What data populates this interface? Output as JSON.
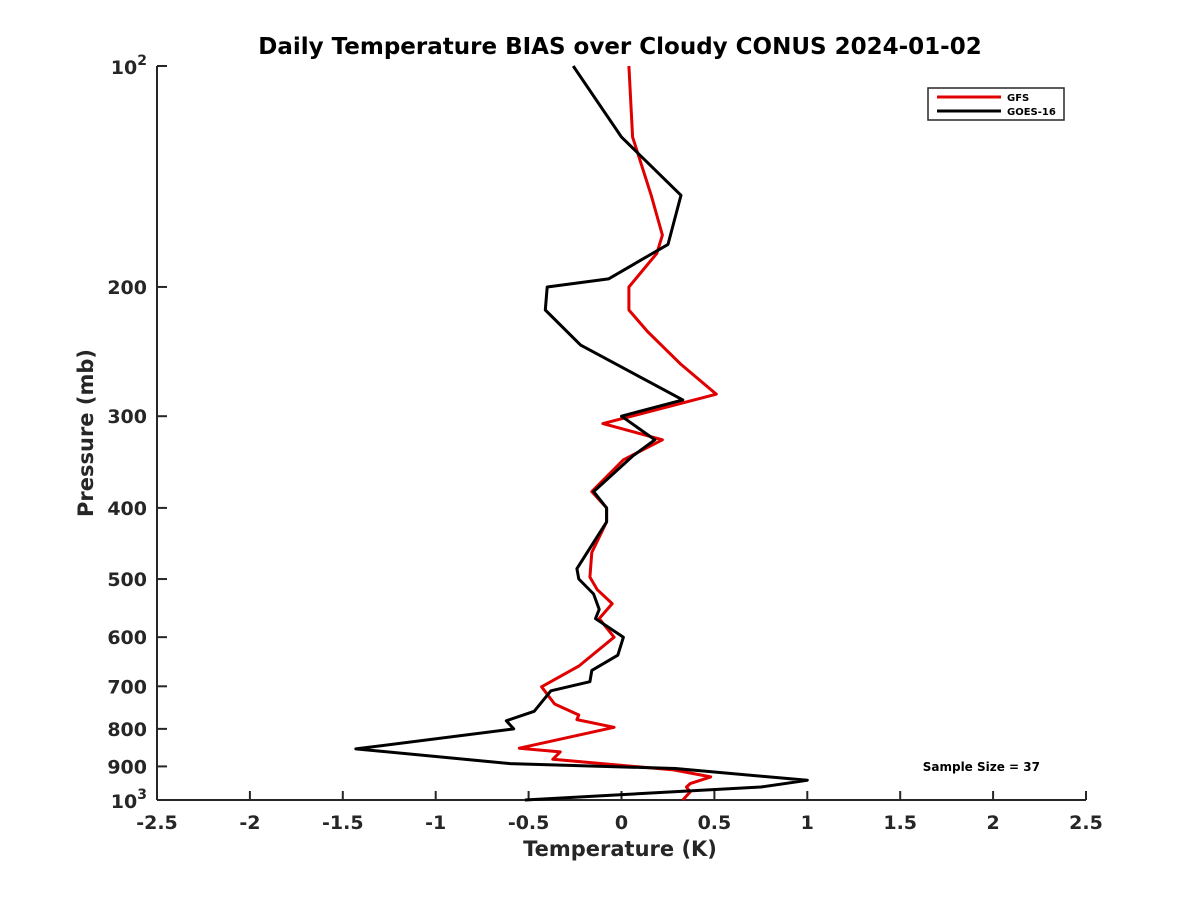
{
  "chart_data": {
    "type": "line",
    "title": "Daily Temperature BIAS over Cloudy CONUS 2024-01-02",
    "xlabel": "Temperature (K)",
    "ylabel": "Pressure (mb)",
    "xlim": [
      -2.5,
      2.5
    ],
    "ylim": [
      1000,
      100
    ],
    "yscale": "log",
    "y_reversed": true,
    "grid": false,
    "legend_position": "top-right",
    "x_ticks": [
      -2.5,
      -2,
      -1.5,
      -1,
      -0.5,
      0,
      0.5,
      1,
      1.5,
      2,
      2.5
    ],
    "x_tick_labels": [
      "-2.5",
      "-2",
      "-1.5",
      "-1",
      "-0.5",
      "0",
      "0.5",
      "1",
      "1.5",
      "2",
      "2.5"
    ],
    "y_ticks": [
      200,
      300,
      400,
      500,
      600,
      700,
      800,
      900
    ],
    "y_tick_labels": [
      "200",
      "300",
      "400",
      "500",
      "600",
      "700",
      "800",
      "900"
    ],
    "y_tick_top": {
      "base": "10",
      "exp": "2"
    },
    "y_tick_bottom": {
      "base": "10",
      "exp": "3"
    },
    "annotation": "Sample Size = 37",
    "series": [
      {
        "name": "GFS",
        "color": "#e00000",
        "points": [
          [
            0.04,
            100
          ],
          [
            0.06,
            125
          ],
          [
            0.16,
            150
          ],
          [
            0.22,
            170
          ],
          [
            0.19,
            180
          ],
          [
            0.04,
            200
          ],
          [
            0.04,
            215
          ],
          [
            0.14,
            230
          ],
          [
            0.32,
            255
          ],
          [
            0.51,
            280
          ],
          [
            -0.1,
            307
          ],
          [
            0.22,
            323
          ],
          [
            0.01,
            344
          ],
          [
            -0.16,
            380
          ],
          [
            -0.08,
            400
          ],
          [
            -0.08,
            418
          ],
          [
            -0.16,
            460
          ],
          [
            -0.17,
            497
          ],
          [
            -0.13,
            517
          ],
          [
            -0.05,
            540
          ],
          [
            -0.12,
            566
          ],
          [
            -0.04,
            600
          ],
          [
            -0.23,
            657
          ],
          [
            -0.43,
            701
          ],
          [
            -0.36,
            740
          ],
          [
            -0.23,
            766
          ],
          [
            -0.24,
            777
          ],
          [
            -0.04,
            796
          ],
          [
            -0.55,
            850
          ],
          [
            -0.33,
            860
          ],
          [
            -0.37,
            880
          ],
          [
            0.28,
            910
          ],
          [
            0.48,
            930
          ],
          [
            0.37,
            950
          ],
          [
            0.35,
            960
          ],
          [
            0.37,
            975
          ],
          [
            0.33,
            1000
          ]
        ]
      },
      {
        "name": "GOES-16",
        "color": "#000000",
        "points": [
          [
            -0.26,
            100
          ],
          [
            0.0,
            125
          ],
          [
            0.32,
            150
          ],
          [
            0.25,
            175
          ],
          [
            -0.07,
            195
          ],
          [
            -0.4,
            200
          ],
          [
            -0.41,
            215
          ],
          [
            -0.22,
            240
          ],
          [
            0.33,
            285
          ],
          [
            0.0,
            300
          ],
          [
            0.18,
            323
          ],
          [
            0.06,
            340
          ],
          [
            -0.15,
            380
          ],
          [
            -0.08,
            400
          ],
          [
            -0.08,
            418
          ],
          [
            -0.24,
            484
          ],
          [
            -0.23,
            500
          ],
          [
            -0.15,
            524
          ],
          [
            -0.12,
            550
          ],
          [
            -0.14,
            566
          ],
          [
            0.01,
            600
          ],
          [
            -0.02,
            635
          ],
          [
            -0.16,
            666
          ],
          [
            -0.17,
            690
          ],
          [
            -0.38,
            710
          ],
          [
            -0.47,
            757
          ],
          [
            -0.62,
            780
          ],
          [
            -0.58,
            800
          ],
          [
            -1.43,
            852
          ],
          [
            -0.6,
            892
          ],
          [
            0.29,
            906
          ],
          [
            1.0,
            940
          ],
          [
            0.75,
            960
          ],
          [
            -0.52,
            1000
          ]
        ]
      }
    ]
  }
}
